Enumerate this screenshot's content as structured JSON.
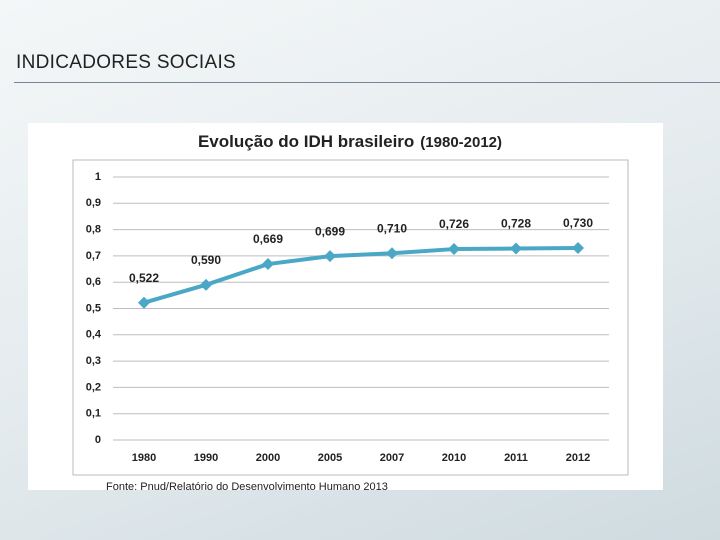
{
  "heading": "INDICADORES SOCIAIS",
  "chart_data": {
    "type": "line",
    "title": "Evolução do IDH brasileiro",
    "subtitle": "(1980-2012)",
    "categories": [
      "1980",
      "1990",
      "2000",
      "2005",
      "2007",
      "2010",
      "2011",
      "2012"
    ],
    "series": [
      {
        "name": "IDH",
        "color": "#4aa8c6",
        "values": [
          0.522,
          0.59,
          0.669,
          0.699,
          0.71,
          0.726,
          0.728,
          0.73
        ],
        "value_labels": [
          "0,522",
          "0,590",
          "0,669",
          "0,699",
          "0,710",
          "0,726",
          "0,728",
          "0,730"
        ]
      }
    ],
    "ylim": [
      0,
      1
    ],
    "yticks": [
      0,
      {
        "value": 0.1,
        "label": "0,1"
      },
      {
        "value": 0.2,
        "label": "0,2"
      },
      {
        "value": 0.3,
        "label": "0,3"
      },
      {
        "value": 0.4,
        "label": "0,4"
      },
      {
        "value": 0.5,
        "label": "0,5"
      },
      {
        "value": 0.6,
        "label": "0,6"
      },
      {
        "value": 0.7,
        "label": "0,7"
      },
      {
        "value": 0.8,
        "label": "0,8"
      },
      {
        "value": 0.9,
        "label": "0,9"
      },
      1
    ],
    "grid": true,
    "source": "Fonte: Pnud/Relatório do Desenvolvimento Humano 2013"
  }
}
